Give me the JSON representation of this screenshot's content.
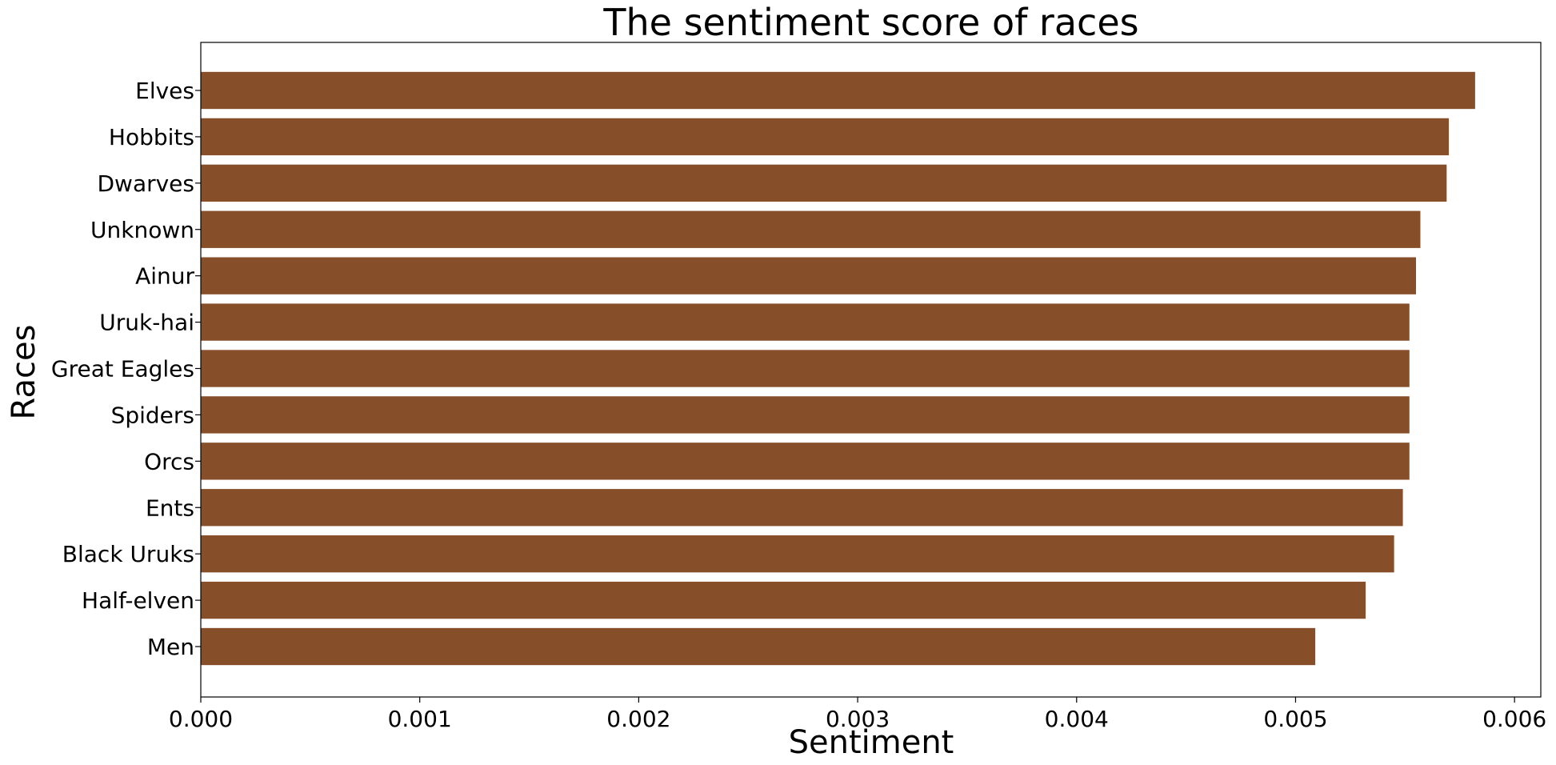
{
  "chart_data": {
    "type": "bar",
    "orientation": "horizontal",
    "title": "The sentiment score of races",
    "xlabel": "Sentiment",
    "ylabel": "Races",
    "categories": [
      "Elves",
      "Hobbits",
      "Dwarves",
      "Unknown",
      "Ainur",
      "Uruk-hai",
      "Great Eagles",
      "Spiders",
      "Orcs",
      "Ents",
      "Black Uruks",
      "Half-elven",
      "Men"
    ],
    "values": [
      0.00582,
      0.0057,
      0.00569,
      0.00557,
      0.00555,
      0.00552,
      0.00552,
      0.00552,
      0.00552,
      0.00549,
      0.00545,
      0.00532,
      0.00509
    ],
    "xlim": [
      0,
      0.00612
    ],
    "xticks": [
      "0.000",
      "0.001",
      "0.002",
      "0.003",
      "0.004",
      "0.005",
      "0.006"
    ],
    "xtick_values": [
      0,
      0.001,
      0.002,
      0.003,
      0.004,
      0.005,
      0.006
    ],
    "bar_color": "#874e2a",
    "grid": false,
    "legend": "none"
  }
}
